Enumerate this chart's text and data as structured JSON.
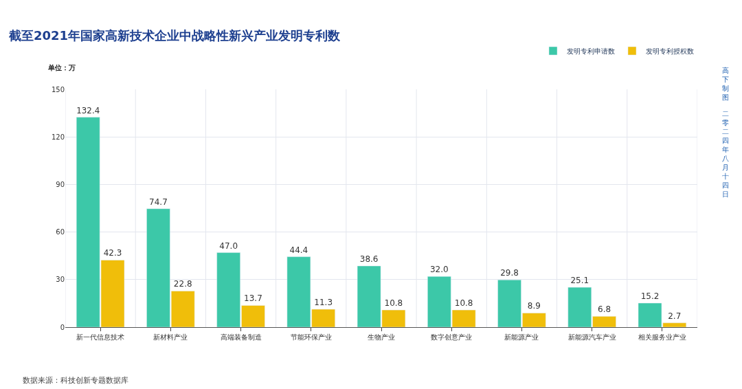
{
  "chart_data": {
    "type": "bar",
    "title": "截至2021年国家高新技术企业中战略性新兴产业发明专利数",
    "ylabel": "单位：万",
    "categories": [
      "新一代信息技术",
      "新材料产业",
      "高端装备制造",
      "节能环保产业",
      "生物产业",
      "数字创意产业",
      "新能源产业",
      "新能源汽车产业",
      "相关服务业产业"
    ],
    "series": [
      {
        "name": "发明专利申请数",
        "color": "#3cc8a8",
        "values": [
          132.4,
          74.7,
          47.0,
          44.4,
          38.6,
          32.0,
          29.8,
          25.1,
          15.2
        ],
        "value_labels": [
          "132.4",
          "74.7",
          "47.0",
          "44.4",
          "38.6",
          "32.0",
          "29.8",
          "25.1",
          "15.2"
        ]
      },
      {
        "name": "发明专利授权数",
        "color": "#f0be0a",
        "values": [
          42.3,
          22.8,
          13.7,
          11.3,
          10.8,
          10.8,
          8.9,
          6.8,
          2.7
        ],
        "value_labels": [
          "42.3",
          "22.8",
          "13.7",
          "11.3",
          "10.8",
          "10.8",
          "8.9",
          "6.8",
          "2.7"
        ]
      }
    ],
    "ylim": [
      0,
      150
    ],
    "yticks": [
      0,
      30,
      60,
      90,
      120,
      150
    ],
    "grid": true,
    "legend": "top right",
    "annotations": [
      "数据来源：科技创新专题数据库",
      "高下制图",
      "二零二四年八月十四日"
    ]
  }
}
